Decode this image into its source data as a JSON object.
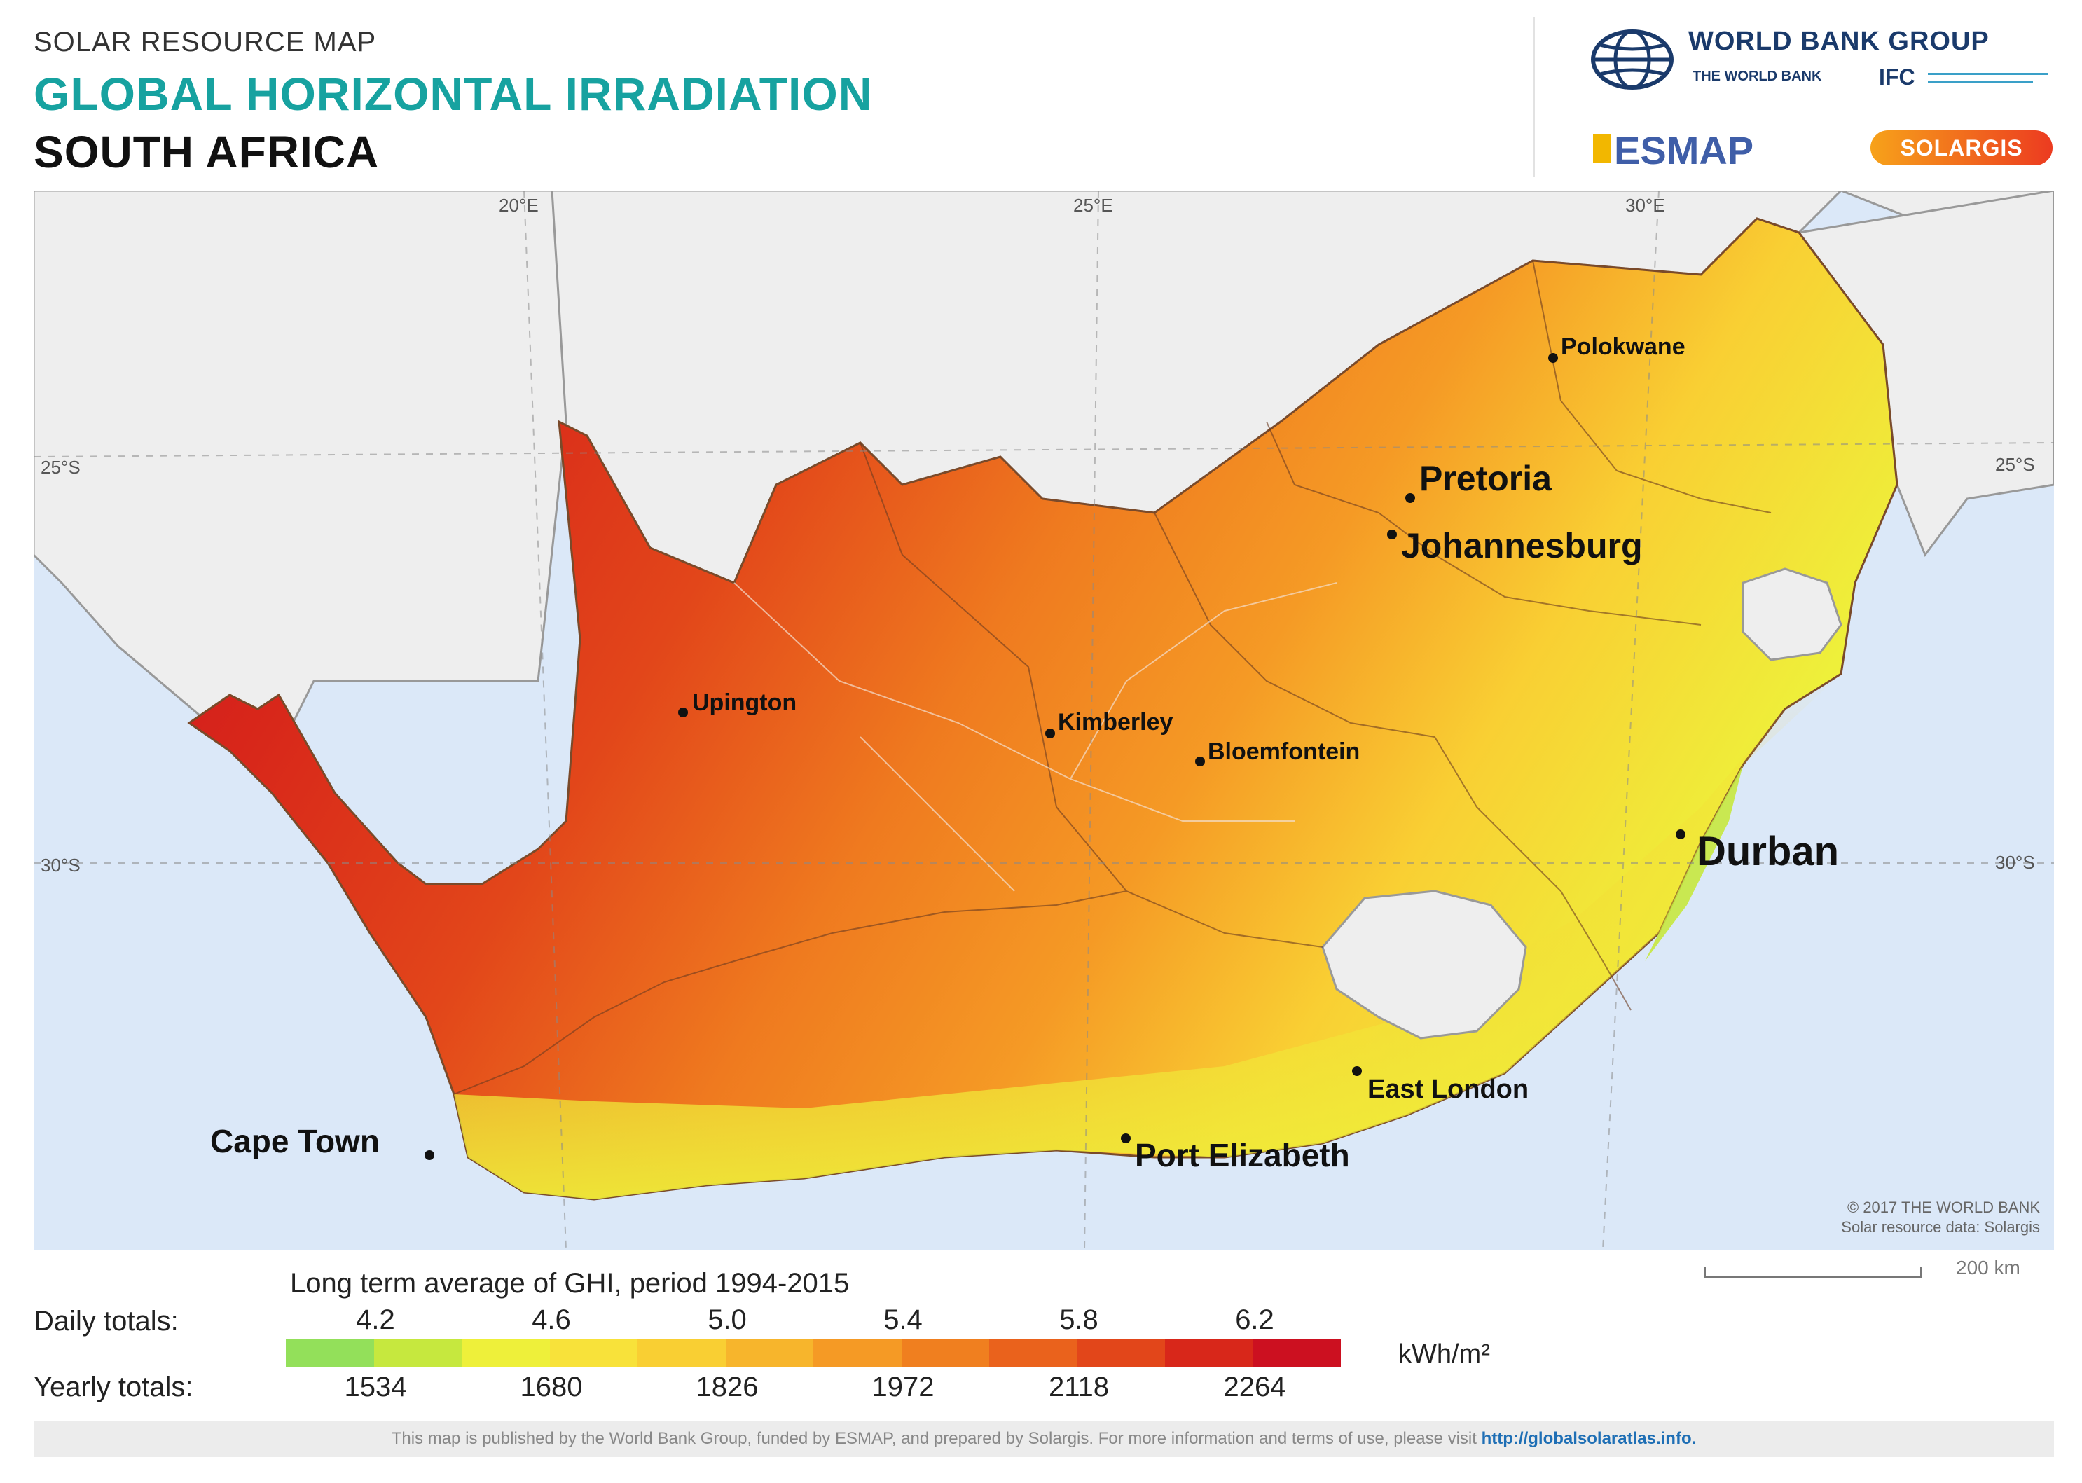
{
  "header": {
    "kicker": "SOLAR RESOURCE MAP",
    "title": "GLOBAL HORIZONTAL IRRADIATION",
    "country": "SOUTH AFRICA"
  },
  "logos": {
    "world_bank_group": "WORLD BANK GROUP",
    "world_bank": "THE WORLD BANK",
    "ifc": "IFC",
    "esmap": "ESMAP",
    "solargis": "SOLARGIS"
  },
  "map": {
    "longitudes": [
      "20°E",
      "25°E",
      "30°E"
    ],
    "latitudes_left": [
      "25°S",
      "30°S"
    ],
    "latitudes_right": [
      "25°S",
      "30°S"
    ],
    "cities": [
      {
        "name": "Polokwane",
        "size": "small"
      },
      {
        "name": "Pretoria",
        "size": "large"
      },
      {
        "name": "Johannesburg",
        "size": "large"
      },
      {
        "name": "Upington",
        "size": "small"
      },
      {
        "name": "Kimberley",
        "size": "small"
      },
      {
        "name": "Bloemfontein",
        "size": "small"
      },
      {
        "name": "Durban",
        "size": "large"
      },
      {
        "name": "East London",
        "size": "small"
      },
      {
        "name": "Port Elizabeth",
        "size": "large"
      },
      {
        "name": "Cape Town",
        "size": "large"
      }
    ],
    "copyright_line1": "© 2017 THE WORLD BANK",
    "copyright_line2": "Solar resource data: Solargis"
  },
  "legend": {
    "title": "Long term average of GHI, period 1994-2015",
    "daily_label": "Daily totals:",
    "yearly_label": "Yearly totals:",
    "daily_values": [
      "4.2",
      "4.6",
      "5.0",
      "5.4",
      "5.8",
      "6.2"
    ],
    "yearly_values": [
      "1534",
      "1680",
      "1826",
      "1972",
      "2118",
      "2264"
    ],
    "unit": "kWh/m²",
    "colors": [
      "#93e05a",
      "#c6e83e",
      "#eef03a",
      "#f8e23a",
      "#f9cf33",
      "#f7b52c",
      "#f59a25",
      "#f07f1f",
      "#ea621c",
      "#e2461a",
      "#d8271a",
      "#cc1020"
    ],
    "scale_label": "200 km"
  },
  "footer": {
    "text": "This map is published by the World Bank Group, funded by ESMAP, and prepared by Solargis. For more information and terms of use, please visit",
    "link": "http://globalsolaratlas.info."
  }
}
